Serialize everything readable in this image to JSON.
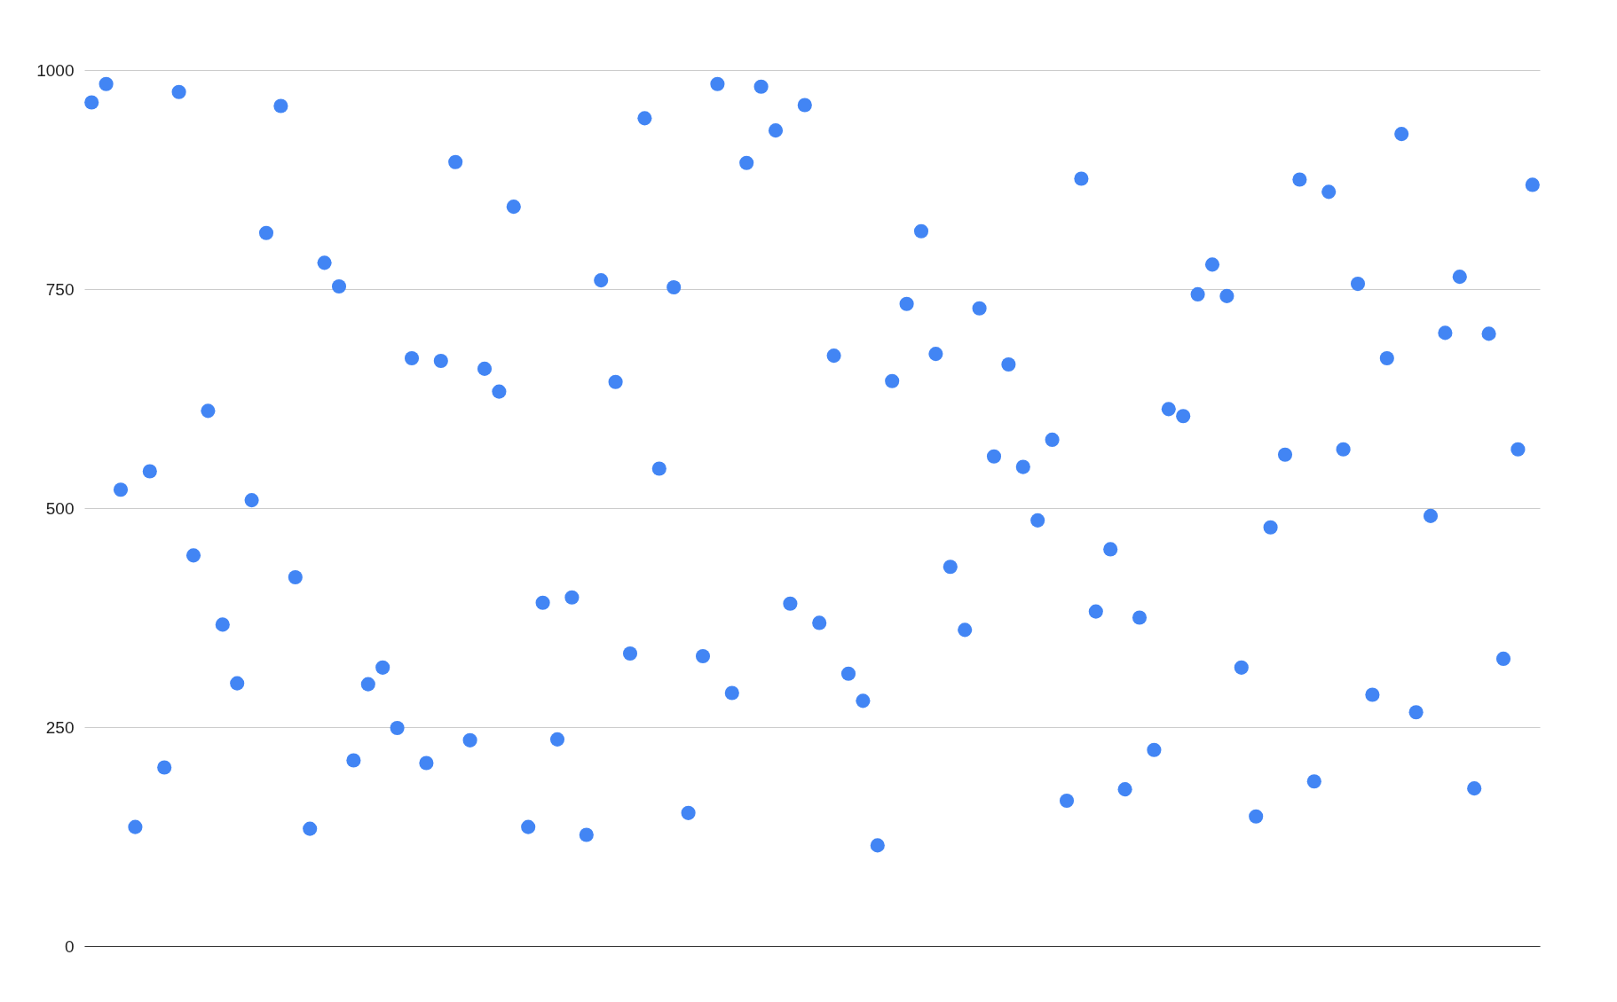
{
  "chart_data": {
    "type": "scatter",
    "categories": [
      null,
      null,
      null,
      null,
      null,
      null,
      null,
      null,
      null,
      null,
      null,
      null,
      null,
      null,
      null,
      null,
      null,
      null,
      null,
      null,
      null,
      null,
      null,
      null,
      null,
      null,
      null,
      null,
      null,
      null,
      null,
      null,
      null,
      null,
      null,
      null,
      null,
      null,
      null,
      null,
      null,
      null,
      null,
      null,
      null,
      null,
      null,
      null,
      null,
      null,
      null,
      null,
      null,
      null,
      null,
      null,
      null,
      null,
      null,
      null,
      null,
      null,
      null,
      null,
      null,
      null,
      null,
      null,
      null,
      null,
      null,
      null,
      null,
      null,
      null,
      null,
      null,
      null,
      null,
      null,
      null,
      null,
      null,
      null,
      null,
      null,
      null,
      null,
      null,
      null,
      null,
      null,
      null,
      null,
      null,
      null,
      null,
      null,
      null,
      null
    ],
    "series": [
      {
        "color": "#4285f4",
        "values": [
          963,
          984,
          521,
          136,
          542,
          204,
          975,
          446,
          611,
          367,
          300,
          509,
          814,
          959,
          421,
          134,
          780,
          753,
          212,
          299,
          318,
          249,
          671,
          209,
          668,
          895,
          235,
          659,
          633,
          844,
          136,
          392,
          236,
          398,
          127,
          760,
          644,
          334,
          945,
          545,
          752,
          152,
          331,
          984,
          289,
          894,
          981,
          931,
          391,
          960,
          369,
          674,
          311,
          280,
          115,
          645,
          733,
          816,
          676,
          433,
          361,
          728,
          559,
          664,
          547,
          486,
          578,
          166,
          876,
          382,
          453,
          179,
          375,
          224,
          613,
          605,
          744,
          778,
          742,
          318,
          148,
          478,
          561,
          875,
          188,
          861,
          567,
          756,
          287,
          671,
          927,
          267,
          491,
          700,
          764,
          180,
          699,
          328,
          567,
          869
        ]
      }
    ],
    "ylim": [
      0,
      1000
    ],
    "yticks": [
      0,
      250,
      500,
      750,
      {
        "value": 1000,
        "label": "1000"
      }
    ],
    "grid": "y",
    "marker": "circle",
    "tick_labels": "y",
    "legend": false
  }
}
